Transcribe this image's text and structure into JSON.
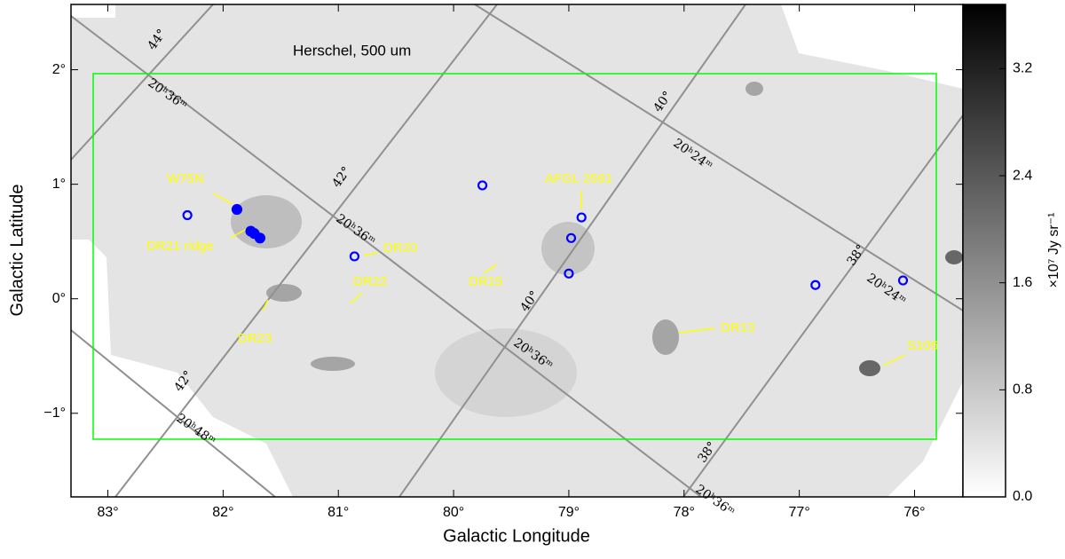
{
  "chart_data": {
    "type": "image",
    "title": "Herschel, 500 um",
    "x_label": "Galactic Longitude",
    "y_label": "Galactic Latitude",
    "xlim": [
      83.32,
      75.58
    ],
    "ylim": [
      -1.73,
      2.57
    ],
    "xticks": [
      {
        "value": 83,
        "label": "83°"
      },
      {
        "value": 82,
        "label": "82°"
      },
      {
        "value": 81,
        "label": "81°"
      },
      {
        "value": 80,
        "label": "80°"
      },
      {
        "value": 79,
        "label": "79°"
      },
      {
        "value": 78,
        "label": "78°"
      },
      {
        "value": 77,
        "label": "77°"
      },
      {
        "value": 76,
        "label": "76°"
      }
    ],
    "yticks": [
      {
        "value": -1,
        "label": "−1°"
      },
      {
        "value": 0,
        "label": "0°"
      },
      {
        "value": 1,
        "label": "1°"
      },
      {
        "value": 2,
        "label": "2°"
      }
    ],
    "colorbar": {
      "label": "×10⁷ Jy sr⁻¹",
      "lim": [
        0,
        3.68
      ],
      "ticks": [
        {
          "value": 0,
          "label": "0.0"
        },
        0.8,
        1.6,
        2.4,
        3.2
      ]
    },
    "sources": {
      "color": "#0000ff",
      "x": [
        82.31,
        81.88,
        81.76,
        81.73,
        81.68,
        80.86,
        79.75,
        78.89,
        78.98,
        79.0,
        76.86,
        76.1
      ],
      "y": [
        0.73,
        0.78,
        0.59,
        0.57,
        0.53,
        0.37,
        0.99,
        0.71,
        0.53,
        0.22,
        0.12,
        0.16
      ]
    },
    "annotations": [
      "W75N",
      "DR21 ridge",
      "DR20",
      "DR22",
      "DR23",
      "DR15",
      "AFGL 2591",
      "DR13",
      "S106"
    ],
    "sky_grid_labels": [
      "44°",
      "20ʰ36ᵐ",
      "42°",
      "20ʰ36ᵐ",
      "40°",
      "20ʰ24ᵐ",
      "40°",
      "20ʰ36ᵐ",
      "38°",
      "20ʰ24ᵐ",
      "42°",
      "20ʰ48ᵐ",
      "38°",
      "20ʰ36ᵐ"
    ]
  }
}
